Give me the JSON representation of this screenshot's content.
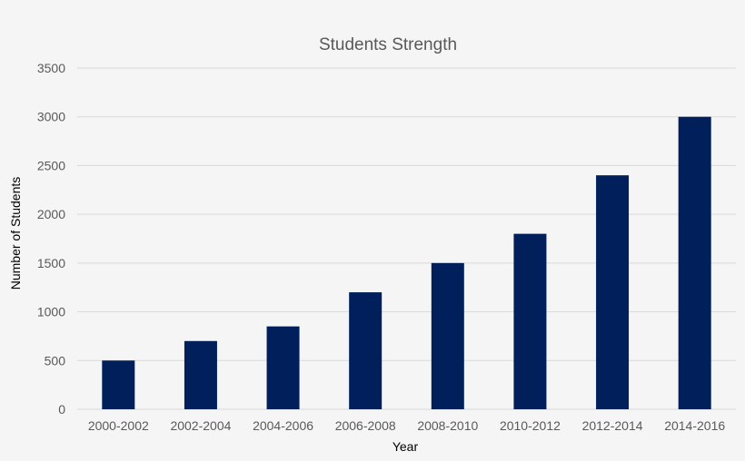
{
  "chart_data": {
    "type": "bar",
    "title": "Students Strength",
    "xlabel": "Year",
    "ylabel": "Number of Students",
    "categories": [
      "2000-2002",
      "2002-2004",
      "2004-2006",
      "2006-2008",
      "2008-2010",
      "2010-2012",
      "2012-2014",
      "2014-2016"
    ],
    "values": [
      500,
      700,
      850,
      1200,
      1500,
      1800,
      2400,
      3000
    ],
    "ylim": [
      0,
      3500
    ],
    "yticks": [
      0,
      500,
      1000,
      1500,
      2000,
      2500,
      3000,
      3500
    ],
    "grid": true,
    "legend": "none",
    "bar_color": "#001f5b",
    "grid_color": "#d9d9d9"
  }
}
